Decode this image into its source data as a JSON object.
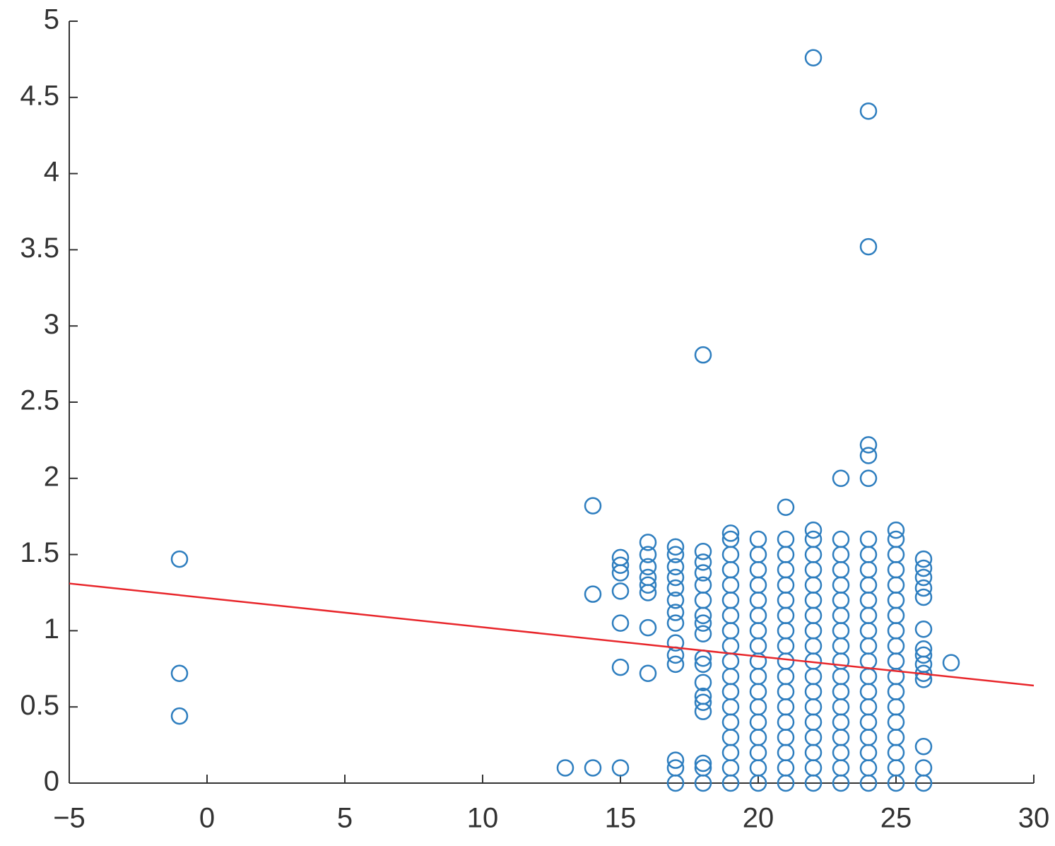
{
  "chart_data": {
    "type": "scatter",
    "xlim": [
      -5,
      30
    ],
    "xticks": [
      {
        "value": -5,
        "label": "−5"
      },
      0,
      5,
      10,
      15,
      20,
      25,
      30
    ],
    "ylim": [
      0,
      5
    ],
    "yticks": [
      0,
      0.5,
      1,
      1.5,
      2,
      2.5,
      3,
      3.5,
      4,
      4.5,
      5
    ],
    "grid": false,
    "series": [
      {
        "color": "#2e7ebf",
        "x": [
          -1,
          -1,
          -1,
          13,
          14,
          14,
          14,
          15,
          15,
          15,
          15,
          15,
          15,
          15,
          16,
          16,
          16,
          16,
          16,
          16,
          16,
          16,
          17,
          17,
          17,
          17,
          17,
          17,
          17,
          17,
          17,
          17,
          17,
          17,
          17,
          17,
          18,
          18,
          18,
          18,
          18,
          18,
          18,
          18,
          18,
          18,
          18,
          18,
          18,
          18,
          18,
          18,
          18,
          18,
          19,
          19,
          19,
          19,
          19,
          19,
          19,
          19,
          19,
          19,
          19,
          19,
          19,
          19,
          19,
          19,
          19,
          19,
          20,
          20,
          20,
          20,
          20,
          20,
          20,
          20,
          20,
          20,
          20,
          20,
          20,
          20,
          20,
          20,
          20,
          21,
          21,
          21,
          21,
          21,
          21,
          21,
          21,
          21,
          21,
          21,
          21,
          21,
          21,
          21,
          21,
          21,
          21,
          22,
          22,
          22,
          22,
          22,
          22,
          22,
          22,
          22,
          22,
          22,
          22,
          22,
          22,
          22,
          22,
          22,
          22,
          22,
          23,
          23,
          23,
          23,
          23,
          23,
          23,
          23,
          23,
          23,
          23,
          23,
          23,
          23,
          23,
          23,
          23,
          23,
          24,
          24,
          24,
          24,
          24,
          24,
          24,
          24,
          24,
          24,
          24,
          24,
          24,
          24,
          24,
          24,
          24,
          24,
          24,
          24,
          24,
          24,
          25,
          25,
          25,
          25,
          25,
          25,
          25,
          25,
          25,
          25,
          25,
          25,
          25,
          25,
          25,
          25,
          25,
          25,
          26,
          26,
          26,
          26,
          26,
          26,
          26,
          26,
          26,
          26,
          26,
          26,
          26,
          26,
          27
        ],
        "y": [
          1.47,
          0.72,
          0.44,
          0.1,
          0.1,
          1.24,
          1.82,
          0.1,
          0.76,
          1.05,
          1.26,
          1.38,
          1.43,
          1.48,
          0.72,
          1.02,
          1.25,
          1.3,
          1.35,
          1.42,
          1.5,
          1.58,
          0,
          0.1,
          0.15,
          0.78,
          0.84,
          0.92,
          1.05,
          1.12,
          1.2,
          1.28,
          1.35,
          1.42,
          1.5,
          1.55,
          0,
          0.1,
          0.13,
          0.47,
          0.53,
          0.57,
          0.66,
          0.78,
          0.82,
          0.98,
          1.05,
          1.1,
          1.2,
          1.3,
          1.38,
          1.45,
          1.52,
          2.81,
          0,
          0.1,
          0.2,
          0.3,
          0.4,
          0.5,
          0.6,
          0.7,
          0.8,
          0.9,
          1,
          1.1,
          1.2,
          1.3,
          1.4,
          1.5,
          1.6,
          1.64,
          0,
          0.1,
          0.2,
          0.3,
          0.4,
          0.5,
          0.6,
          0.7,
          0.8,
          0.9,
          1,
          1.1,
          1.2,
          1.3,
          1.4,
          1.5,
          1.6,
          0,
          0.1,
          0.2,
          0.3,
          0.4,
          0.5,
          0.6,
          0.7,
          0.8,
          0.9,
          1,
          1.1,
          1.2,
          1.3,
          1.4,
          1.5,
          1.6,
          1.81,
          0,
          0.1,
          0.2,
          0.3,
          0.4,
          0.5,
          0.6,
          0.7,
          0.8,
          0.9,
          1,
          1.1,
          1.2,
          1.3,
          1.4,
          1.5,
          1.6,
          1.66,
          4.76,
          0,
          0.1,
          0.2,
          0.3,
          0.4,
          0.5,
          0.6,
          0.7,
          0.8,
          0.9,
          1,
          1.1,
          1.2,
          1.3,
          1.4,
          1.5,
          1.6,
          2,
          0,
          0.1,
          0.2,
          0.3,
          0.4,
          0.5,
          0.6,
          0.7,
          0.8,
          0.9,
          1,
          1.1,
          1.2,
          1.3,
          1.4,
          1.5,
          1.6,
          2,
          2.15,
          2.22,
          3.52,
          4.41,
          0,
          0.1,
          0.2,
          0.3,
          0.4,
          0.5,
          0.6,
          0.7,
          0.8,
          0.9,
          1,
          1.1,
          1.2,
          1.3,
          1.4,
          1.5,
          1.6,
          1.66,
          0,
          0.1,
          0.24,
          0.68,
          0.72,
          0.78,
          0.84,
          0.88,
          1.01,
          1.22,
          1.28,
          1.35,
          1.41,
          1.47,
          0.79
        ]
      }
    ],
    "fit_line": {
      "color": "#e8262b",
      "x": [
        -5,
        30
      ],
      "y": [
        1.31,
        0.64
      ]
    }
  }
}
